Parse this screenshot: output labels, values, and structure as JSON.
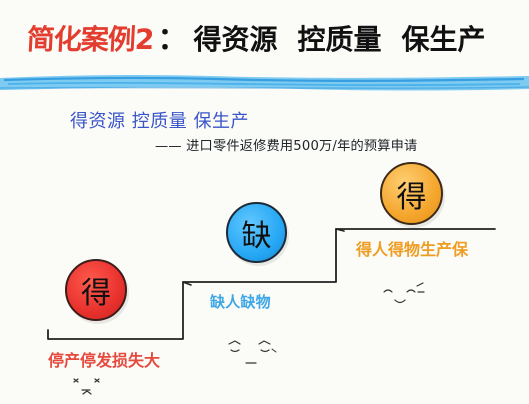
{
  "title": {
    "part1": "简化案例2",
    "separator": "：",
    "part2": "得资源",
    "part3": "控质量",
    "part4": "保生产"
  },
  "subtitle": {
    "line1": "得资源  控质量  保生产",
    "line2": "—— 进口零件返修费用500万/年的预算申请"
  },
  "steps": [
    {
      "badge": "得",
      "caption": "停产停发损失大",
      "color": "#e7302c"
    },
    {
      "badge": "缺",
      "caption": "缺人缺物",
      "color": "#25a7f4"
    },
    {
      "badge": "得",
      "caption": "得人得物生产保",
      "color": "#f4a62d"
    }
  ],
  "faces": [
    {
      "name": "worried-face",
      "mood": "worried"
    },
    {
      "name": "sweat-face",
      "mood": "anxious"
    },
    {
      "name": "happy-face",
      "mood": "happy"
    }
  ],
  "colors": {
    "title_red": "#e23d2e",
    "subtitle_blue": "#3a55c9",
    "brush_blue": "#72c7ef",
    "step_red": "#e7302c",
    "step_blue": "#25a7f4",
    "step_orange": "#f4a62d"
  }
}
